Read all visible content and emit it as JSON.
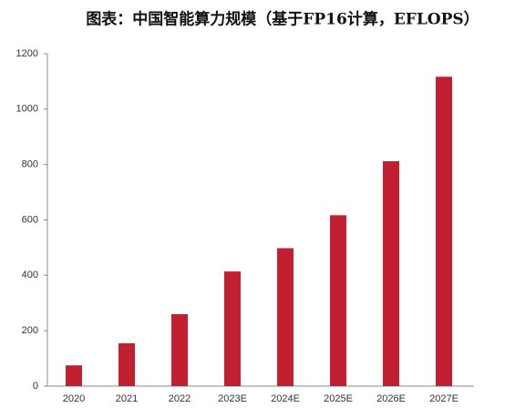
{
  "chart_data": {
    "type": "bar",
    "title": "图表：中国智能算力规模（基于FP16计算，EFLOPS）",
    "categories": [
      "2020",
      "2021",
      "2022",
      "2023E",
      "2024E",
      "2025E",
      "2026E",
      "2027E"
    ],
    "values": [
      75,
      155,
      260,
      414,
      498,
      617,
      812,
      1117
    ],
    "color": "#c0202f",
    "ylim": [
      0,
      1200
    ],
    "yticks": [
      0,
      200,
      400,
      600,
      800,
      1000,
      1200
    ],
    "grid": false
  }
}
